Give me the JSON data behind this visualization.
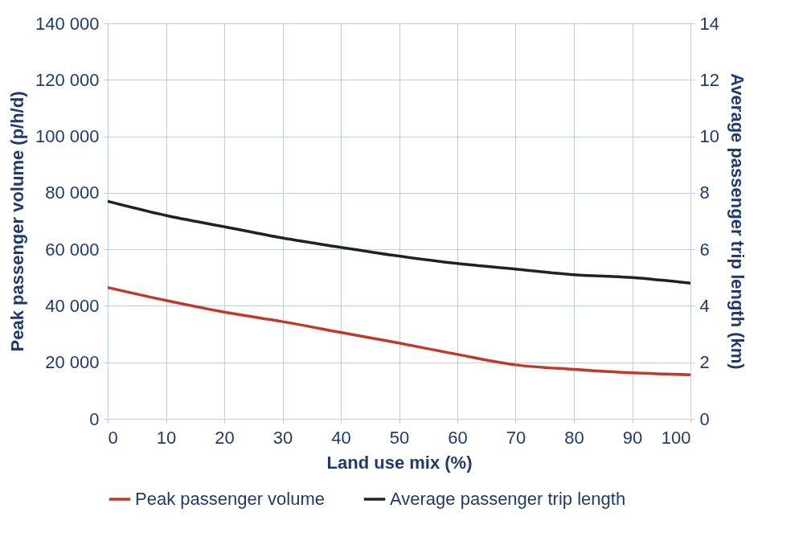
{
  "chart_data": {
    "type": "line",
    "xlabel": "Land use mix (%)",
    "ylabel": "Peak passenger volume (p/h/d)",
    "y2label": "Average passenger trip length (km)",
    "x": [
      0,
      10,
      20,
      30,
      40,
      50,
      60,
      70,
      80,
      90,
      100
    ],
    "series": [
      {
        "name": "Peak passenger volume",
        "color": "#c0392b",
        "values": [
          46500,
          41900,
          37800,
          34400,
          30600,
          26800,
          22800,
          19100,
          17500,
          16300,
          15600
        ]
      },
      {
        "name": "Average passenger trip length",
        "color": "#222222",
        "axis": "y2",
        "values": [
          7.7,
          7.2,
          6.8,
          6.4,
          6.07,
          5.76,
          5.5,
          5.3,
          5.1,
          5.0,
          4.8
        ]
      }
    ],
    "xlim": [
      0,
      100
    ],
    "xticks": [
      0,
      10,
      20,
      30,
      40,
      50,
      60,
      70,
      80,
      90,
      100
    ],
    "ylim": [
      0,
      140000
    ],
    "yticks": [
      0,
      {
        "value": 20000,
        "label": "20 000"
      },
      {
        "value": 40000,
        "label": "40 000"
      },
      {
        "value": 60000,
        "label": "60 000"
      },
      {
        "value": 80000,
        "label": "80 000"
      },
      {
        "value": 100000,
        "label": "100 000"
      },
      {
        "value": 120000,
        "label": "120 000"
      },
      {
        "value": 140000,
        "label": "140 000"
      }
    ],
    "y2lim": [
      0,
      14
    ],
    "y2ticks": [
      0,
      2,
      4,
      6,
      8,
      10,
      12,
      14
    ],
    "grid": true,
    "legend": "bottom"
  }
}
